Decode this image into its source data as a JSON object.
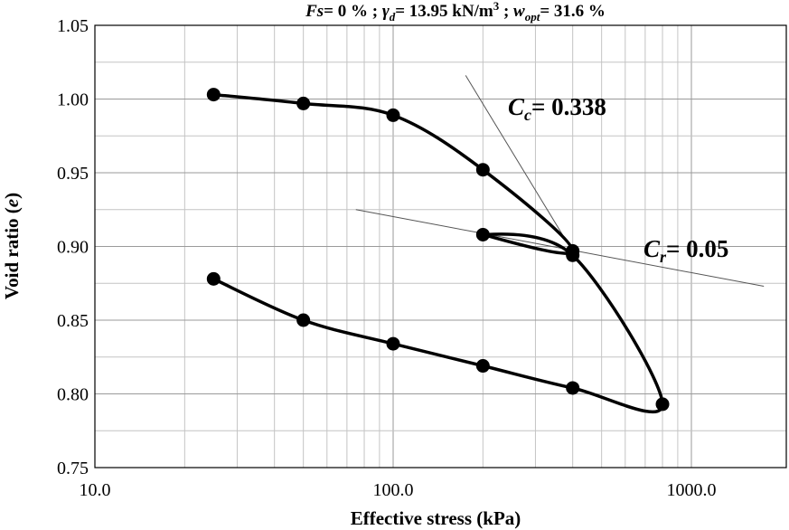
{
  "chart_data": {
    "type": "scatter",
    "title_parts": {
      "fs": "Fs",
      "fs_val": "= 0 % ; ",
      "gamma": "γ",
      "gamma_sub": "d",
      "gamma_val": "= 13.95 kN/m",
      "gamma_sup": "3",
      "sep": " ; ",
      "w": "w",
      "w_sub": "opt",
      "w_val": "= 31.6 %"
    },
    "xlabel": "Effective stress (kPa)",
    "ylabel_prefix": "Void ratio (",
    "ylabel_var": "e",
    "ylabel_suffix": ")",
    "x_scale": "log",
    "xlim": [
      10,
      1800
    ],
    "ylim": [
      0.75,
      1.05
    ],
    "x_ticks": [
      10,
      100,
      1000
    ],
    "x_tick_labels": [
      "10.0",
      "100.0",
      "1000.0"
    ],
    "y_ticks": [
      0.75,
      0.8,
      0.85,
      0.9,
      0.95,
      1.0,
      1.05
    ],
    "y_tick_labels": [
      "0.75",
      "0.80",
      "0.85",
      "0.90",
      "0.95",
      "1.00",
      "1.05"
    ],
    "grid": true,
    "marker_color": "#000000",
    "series": [
      {
        "points": [
          {
            "x": 25,
            "y": 1.003
          },
          {
            "x": 50,
            "y": 0.997
          },
          {
            "x": 100,
            "y": 0.989
          },
          {
            "x": 200,
            "y": 0.952
          },
          {
            "x": 400,
            "y": 0.897
          },
          {
            "x": 200,
            "y": 0.908
          },
          {
            "x": 400,
            "y": 0.894
          },
          {
            "x": 800,
            "y": 0.793
          },
          {
            "x": 400,
            "y": 0.804
          },
          {
            "x": 200,
            "y": 0.819
          },
          {
            "x": 100,
            "y": 0.834
          },
          {
            "x": 50,
            "y": 0.85
          },
          {
            "x": 25,
            "y": 0.878
          }
        ]
      }
    ],
    "annotations": [
      {
        "symbol": "C",
        "sub": "c",
        "text": "= 0.338"
      },
      {
        "symbol": "C",
        "sub": "r",
        "text": "= 0.05"
      }
    ],
    "tangent_lines": [
      {
        "x1": 175,
        "y1": 1.016,
        "x2": 410,
        "y2": 0.893
      },
      {
        "x1": 75,
        "y1": 0.925,
        "x2": 1750,
        "y2": 0.873
      }
    ]
  }
}
